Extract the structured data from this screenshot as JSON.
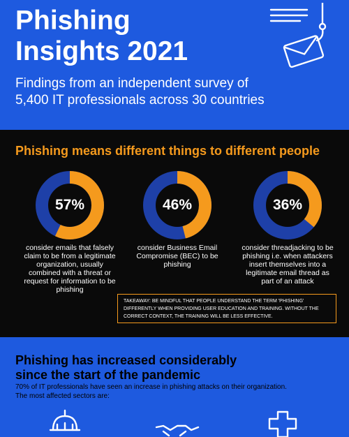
{
  "header": {
    "title_line1": "Phishing",
    "title_line2": "Insights 2021",
    "subtitle_line1": "Findings from an independent survey of",
    "subtitle_line2": "5,400 IT professionals across 30 countries",
    "icon": "envelope-on-hook-icon"
  },
  "definitions": {
    "title": "Phishing means different things to different people",
    "stats": [
      {
        "value": 57,
        "label": "57%",
        "caption": "consider emails that falsely claim to be from a legitimate organization, usually combined with a threat or request for information to be phishing"
      },
      {
        "value": 46,
        "label": "46%",
        "caption": "consider Business Email Compromise (BEC) to be phishing"
      },
      {
        "value": 36,
        "label": "36%",
        "caption": "consider threadjacking to be phishing i.e. when attackers insert themselves into a legitimate email thread as part of an attack"
      }
    ],
    "takeaway": "Takeaway: Be mindful that people understand the term 'phishing' differently when providing user education and training. Without the correct context, the training will be less effective."
  },
  "pandemic": {
    "title": "Phishing has increased considerably since the start of the pandemic",
    "body_line1": "70% of IT professionals have seen an increase in phishing attacks on their organization.",
    "body_line2": "The most affected sectors are:",
    "sector_icons": [
      "government-building-icon",
      "handshake-icon",
      "medical-cross-icon"
    ]
  },
  "colors": {
    "blue": "#1e5adf",
    "orange": "#f59a1d",
    "black": "#0a0a0a",
    "donut_remainder": "#1e40a8"
  }
}
